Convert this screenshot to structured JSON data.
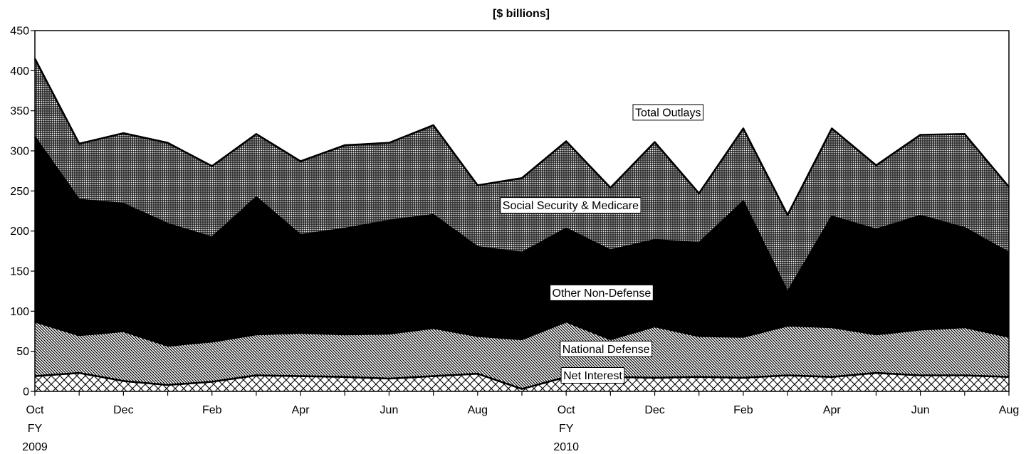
{
  "chart_data": {
    "type": "area",
    "stacked": true,
    "title": "[$ billions]",
    "xlabel": "",
    "ylabel": "",
    "ylim": [
      0,
      450
    ],
    "yticks": [
      0,
      50,
      100,
      150,
      200,
      250,
      300,
      350,
      400,
      450
    ],
    "grid": false,
    "legend": "inline labels",
    "x": [
      "Oct 2008",
      "Nov 2008",
      "Dec 2008",
      "Jan 2009",
      "Feb 2009",
      "Mar 2009",
      "Apr 2009",
      "May 2009",
      "Jun 2009",
      "Jul 2009",
      "Aug 2009",
      "Sep 2009",
      "Oct 2009",
      "Nov 2009",
      "Dec 2009",
      "Jan 2010",
      "Feb 2010",
      "Mar 2010",
      "Apr 2010",
      "May 2010",
      "Jun 2010",
      "Jul 2010",
      "Aug 2010"
    ],
    "x_tick_labels": [
      {
        "index": 0,
        "lines": [
          "Oct",
          "FY",
          "2009"
        ]
      },
      {
        "index": 2,
        "lines": [
          "Dec"
        ]
      },
      {
        "index": 4,
        "lines": [
          "Feb"
        ]
      },
      {
        "index": 6,
        "lines": [
          "Apr"
        ]
      },
      {
        "index": 8,
        "lines": [
          "Jun"
        ]
      },
      {
        "index": 10,
        "lines": [
          "Aug"
        ]
      },
      {
        "index": 12,
        "lines": [
          "Oct",
          "FY",
          "2010"
        ]
      },
      {
        "index": 14,
        "lines": [
          "Dec"
        ]
      },
      {
        "index": 16,
        "lines": [
          "Feb"
        ]
      },
      {
        "index": 18,
        "lines": [
          "Apr"
        ]
      },
      {
        "index": 20,
        "lines": [
          "Jun"
        ]
      },
      {
        "index": 22,
        "lines": [
          "Aug"
        ]
      }
    ],
    "series": [
      {
        "name": "Net Interest",
        "fill": "crosshatch",
        "cumulative": [
          19,
          23,
          13,
          8,
          12,
          20,
          19,
          18,
          16,
          19,
          22,
          3,
          18,
          18,
          17,
          18,
          17,
          20,
          18,
          23,
          20,
          20,
          18
        ]
      },
      {
        "name": "National Defense",
        "fill": "diagonal",
        "cumulative": [
          87,
          70,
          75,
          57,
          62,
          71,
          73,
          71,
          72,
          79,
          69,
          65,
          87,
          65,
          81,
          69,
          68,
          82,
          80,
          71,
          77,
          80,
          68
        ]
      },
      {
        "name": "Other Non-Defense",
        "fill": "solid",
        "cumulative": [
          317,
          239,
          234,
          209,
          192,
          242,
          195,
          203,
          213,
          220,
          180,
          173,
          203,
          176,
          189,
          185,
          237,
          124,
          218,
          202,
          219,
          204,
          173
        ]
      },
      {
        "name": "Social Security & Medicare",
        "fill": "dense-crosshatch",
        "cumulative": [
          415,
          309,
          322,
          310,
          281,
          321,
          287,
          307,
          310,
          332,
          257,
          266,
          312,
          254,
          311,
          247,
          328,
          220,
          328,
          282,
          320,
          321,
          255
        ]
      }
    ],
    "annotations": [
      {
        "text": "Total Outlays",
        "x_index": 14.3,
        "y": 348
      },
      {
        "text": "Social Security & Medicare",
        "x_index": 12.1,
        "y": 232
      },
      {
        "text": "Other Non-Defense",
        "x_index": 12.8,
        "y": 123
      },
      {
        "text": "National Defense",
        "x_index": 12.9,
        "y": 53
      },
      {
        "text": "Net Interest",
        "x_index": 12.6,
        "y": 20
      }
    ]
  }
}
